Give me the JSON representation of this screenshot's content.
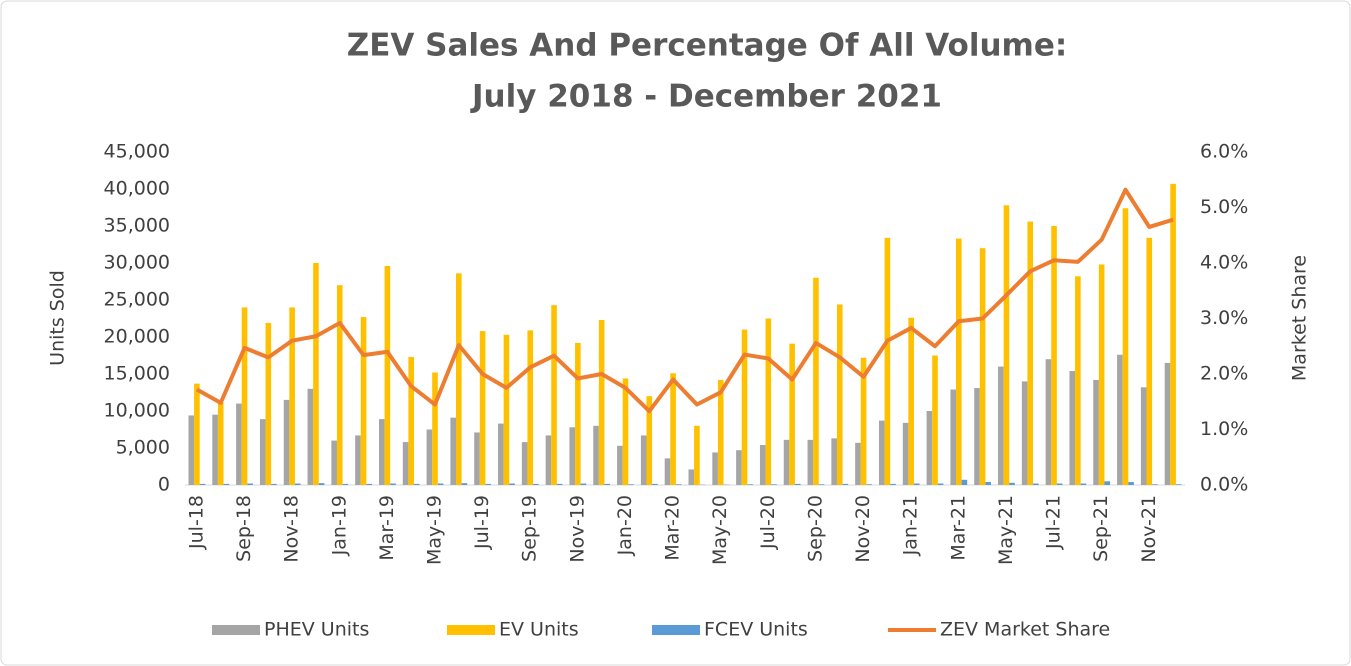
{
  "chart_data": {
    "type": "bar",
    "title": [
      "ZEV Sales And Percentage Of All Volume:",
      "July 2018 - December 2021"
    ],
    "ylabel": "Units Sold",
    "y2label": "Market Share",
    "categories": [
      "Jul-18",
      null,
      "Sep-18",
      null,
      "Nov-18",
      null,
      "Jan-19",
      null,
      "Mar-19",
      null,
      "May-19",
      null,
      "Jul-19",
      null,
      "Sep-19",
      null,
      "Nov-19",
      null,
      "Jan-20",
      null,
      "Mar-20",
      null,
      "May-20",
      null,
      "Jul-20",
      null,
      "Sep-20",
      null,
      "Nov-20",
      null,
      "Jan-21",
      null,
      "Mar-21",
      null,
      "May-21",
      null,
      "Jul-21",
      null,
      "Sep-21",
      null,
      "Nov-21",
      null
    ],
    "series": [
      {
        "name": "PHEV Units",
        "color": "#a5a5a5",
        "type": "bar",
        "values": [
          9400,
          9500,
          11000,
          8900,
          11500,
          13000,
          6000,
          6700,
          8900,
          5800,
          7500,
          9100,
          7100,
          8300,
          5800,
          6700,
          7800,
          8000,
          5300,
          6700,
          3600,
          2100,
          4400,
          4700,
          5400,
          6100,
          6100,
          6300,
          5700,
          8700,
          8400,
          10000,
          12900,
          13100,
          16000,
          14000,
          17000,
          15400,
          14200,
          17600,
          13200,
          16500
        ]
      },
      {
        "name": "EV Units",
        "color": "#ffc000",
        "type": "bar",
        "values": [
          13700,
          11200,
          24000,
          21900,
          24000,
          30000,
          27000,
          22700,
          29600,
          17300,
          15200,
          28600,
          20800,
          20300,
          20900,
          24300,
          19200,
          22300,
          14400,
          12000,
          15100,
          8000,
          14200,
          21000,
          22500,
          19100,
          28000,
          24400,
          17200,
          33400,
          22600,
          17500,
          33300,
          32000,
          37800,
          35600,
          35000,
          28200,
          29800,
          37400,
          33400,
          40700
        ]
      },
      {
        "name": "FCEV Units",
        "color": "#5b9bd5",
        "type": "bar",
        "values": [
          150,
          150,
          200,
          150,
          200,
          250,
          150,
          150,
          200,
          150,
          200,
          250,
          150,
          200,
          150,
          150,
          200,
          150,
          100,
          150,
          100,
          50,
          50,
          100,
          100,
          150,
          100,
          150,
          100,
          150,
          200,
          200,
          700,
          400,
          300,
          200,
          200,
          200,
          500,
          400,
          100,
          100
        ]
      },
      {
        "name": "ZEV Market Share",
        "color": "#ed7d31",
        "type": "line",
        "axis": "y2",
        "values": [
          1.72,
          1.48,
          2.47,
          2.3,
          2.6,
          2.68,
          2.92,
          2.34,
          2.4,
          1.78,
          1.45,
          2.52,
          2.0,
          1.75,
          2.12,
          2.33,
          1.92,
          2.0,
          1.75,
          1.33,
          1.9,
          1.45,
          1.67,
          2.35,
          2.28,
          1.9,
          2.56,
          2.3,
          1.95,
          2.6,
          2.83,
          2.5,
          2.95,
          3.0,
          3.42,
          3.85,
          4.05,
          4.02,
          4.42,
          5.32,
          4.65,
          4.78
        ]
      }
    ],
    "ylim": [
      0,
      45000
    ],
    "yticks": [
      0,
      {
        "value": 5000,
        "label": "5,000"
      },
      {
        "value": 10000,
        "label": "10,000"
      },
      {
        "value": 15000,
        "label": "15,000"
      },
      {
        "value": 20000,
        "label": "20,000"
      },
      {
        "value": 25000,
        "label": "25,000"
      },
      {
        "value": 30000,
        "label": "30,000"
      },
      {
        "value": 35000,
        "label": "35,000"
      },
      {
        "value": 40000,
        "label": "40,000"
      },
      {
        "value": 45000,
        "label": "45,000"
      }
    ],
    "y2lim": [
      0,
      6
    ],
    "y2ticks": [
      {
        "value": 0,
        "label": "0.0%"
      },
      {
        "value": 1,
        "label": "1.0%"
      },
      {
        "value": 2,
        "label": "2.0%"
      },
      {
        "value": 3,
        "label": "3.0%"
      },
      {
        "value": 4,
        "label": "4.0%"
      },
      {
        "value": 5,
        "label": "5.0%"
      },
      {
        "value": 6,
        "label": "6.0%"
      }
    ],
    "legend": "bottom"
  }
}
